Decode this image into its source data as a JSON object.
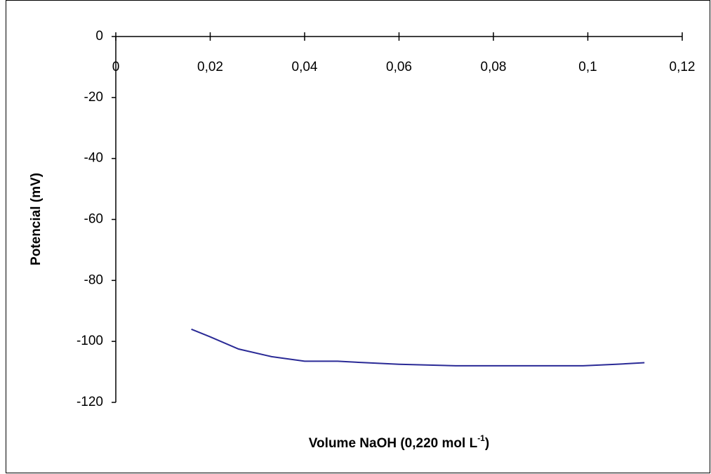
{
  "chart_data": {
    "type": "line",
    "xlabel": [
      "Volume NaOH (0,220 mol L",
      "-1",
      ")"
    ],
    "ylabel": "Potencial (mV)",
    "x": [
      0.016,
      0.02,
      0.026,
      0.033,
      0.04,
      0.047,
      0.053,
      0.06,
      0.072,
      0.087,
      0.099,
      0.106,
      0.112
    ],
    "series": [
      {
        "color": "#2a2a96",
        "values": [
          -96,
          -98.5,
          -102.5,
          -105,
          -106.5,
          -106.5,
          -107,
          -107.5,
          -108,
          -108,
          -108,
          -107.5,
          -107
        ]
      }
    ],
    "xlim": [
      0,
      0.12
    ],
    "xticks": [
      {
        "value": 0,
        "label": "0"
      },
      {
        "value": 0.02,
        "label": "0,02"
      },
      {
        "value": 0.04,
        "label": "0,04"
      },
      {
        "value": 0.06,
        "label": "0,06"
      },
      {
        "value": 0.08,
        "label": "0,08"
      },
      {
        "value": 0.1,
        "label": "0,1"
      },
      {
        "value": 0.12,
        "label": "0,12"
      }
    ],
    "ylim": [
      -120,
      0
    ],
    "yticks": [
      0,
      -20,
      -40,
      -60,
      -80,
      -100,
      -120
    ]
  }
}
